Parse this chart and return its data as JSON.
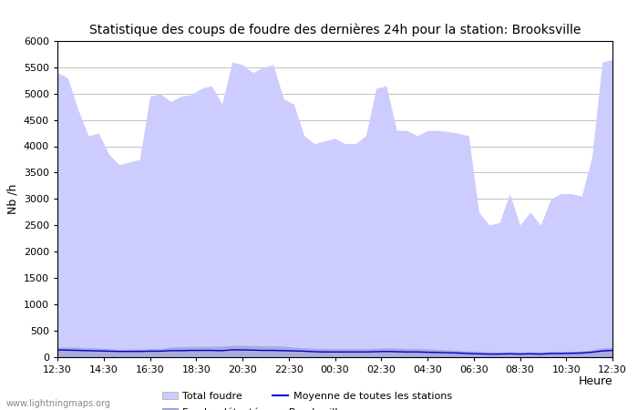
{
  "title": "Statistique des coups de foudre des dernières 24h pour la station: Brooksville",
  "xlabel": "Heure",
  "ylabel": "Nb /h",
  "ylim": [
    0,
    6000
  ],
  "yticks": [
    0,
    500,
    1000,
    1500,
    2000,
    2500,
    3000,
    3500,
    4000,
    4500,
    5000,
    5500,
    6000
  ],
  "x_labels": [
    "12:30",
    "14:30",
    "16:30",
    "18:30",
    "20:30",
    "22:30",
    "00:30",
    "02:30",
    "04:30",
    "06:30",
    "08:30",
    "10:30",
    "12:30"
  ],
  "fill_total_color": "#ccccff",
  "fill_brooksville_color": "#aaaadd",
  "line_color": "#0000cc",
  "background_color": "#ffffff",
  "watermark": "www.lightningmaps.org",
  "total_foudre": [
    5400,
    5300,
    4700,
    4200,
    4250,
    3850,
    3650,
    3700,
    3750,
    4950,
    5000,
    4850,
    4950,
    4980,
    5100,
    5150,
    4800,
    5600,
    5550,
    5400,
    5500,
    5550,
    4900,
    4800,
    4200,
    4050,
    4100,
    4150,
    4050,
    4050,
    4200,
    5100,
    5150,
    4300,
    4300,
    4200,
    4300,
    4300,
    4280,
    4250,
    4200,
    2750,
    2500,
    2550,
    3100,
    2500,
    2750,
    2500,
    3000,
    3100,
    3100,
    3050,
    3800,
    5600,
    5650
  ],
  "brooksville": [
    180,
    185,
    180,
    170,
    165,
    155,
    140,
    145,
    145,
    155,
    155,
    185,
    190,
    195,
    195,
    200,
    200,
    215,
    215,
    210,
    205,
    205,
    200,
    180,
    170,
    160,
    155,
    155,
    155,
    155,
    155,
    160,
    170,
    165,
    160,
    155,
    150,
    140,
    130,
    120,
    110,
    100,
    95,
    90,
    95,
    90,
    95,
    90,
    100,
    100,
    105,
    110,
    130,
    165,
    180
  ],
  "moyenne": [
    130,
    125,
    120,
    115,
    110,
    105,
    100,
    100,
    100,
    105,
    105,
    115,
    115,
    120,
    120,
    120,
    115,
    130,
    130,
    125,
    120,
    120,
    115,
    110,
    105,
    95,
    90,
    90,
    90,
    90,
    90,
    95,
    100,
    95,
    90,
    90,
    85,
    80,
    75,
    70,
    60,
    55,
    50,
    50,
    55,
    50,
    55,
    50,
    60,
    60,
    65,
    70,
    85,
    110,
    120
  ]
}
